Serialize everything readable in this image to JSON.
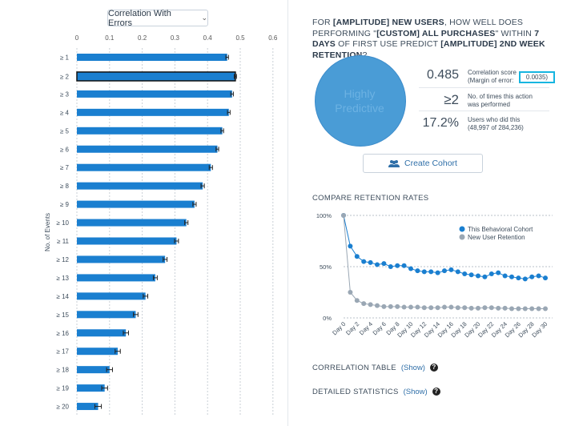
{
  "dropdown": {
    "label": "Correlation With Errors",
    "chevron": "chevron-down-icon"
  },
  "left_chart": {
    "ylabel": "No. of Events",
    "ticks": [
      "0",
      "0.1",
      "0.2",
      "0.3",
      "0.4",
      "0.5",
      "0.6"
    ],
    "categories": [
      "≥ 1",
      "≥ 2",
      "≥ 3",
      "≥ 4",
      "≥ 5",
      "≥ 6",
      "≥ 7",
      "≥ 8",
      "≥ 9",
      "≥ 10",
      "≥ 11",
      "≥ 12",
      "≥ 13",
      "≥ 14",
      "≥ 15",
      "≥ 16",
      "≥ 17",
      "≥ 18",
      "≥ 19",
      "≥ 20"
    ]
  },
  "question": {
    "p1": "FOR ",
    "b1": "[AMPLITUDE] NEW USERS",
    "p2": ", HOW WELL DOES PERFORMING \"",
    "b2": "[CUSTOM] ALL PURCHASES",
    "p3": "\" WITHIN ",
    "b3": "7 DAYS",
    "p4": " OF FIRST USE PREDICT ",
    "b4": "[AMPLITUDE] 2ND WEEK RETENTION",
    "p5": "?"
  },
  "circle": {
    "line1": "Highly",
    "line2": "Predictive"
  },
  "stats": {
    "corr_value": "0.485",
    "corr_label": "Correlation score",
    "moe_label": "(Margin of error:",
    "moe_value": "0.0035)",
    "times_value": "≥2",
    "times_label1": "No. of times this action",
    "times_label2": "was performed",
    "users_value": "17.2%",
    "users_label1": "Users who did this",
    "users_label2": "(48,997 of 284,236)"
  },
  "cohort_button": {
    "label": "Create Cohort",
    "icon": "users-icon"
  },
  "retention": {
    "title": "COMPARE RETENTION RATES",
    "y_ticks": [
      "100%",
      "50%",
      "0%"
    ],
    "x_labels": [
      "Day 0",
      "Day 2",
      "Day 4",
      "Day 6",
      "Day 8",
      "Day 10",
      "Day 12",
      "Day 14",
      "Day 16",
      "Day 18",
      "Day 20",
      "Day 22",
      "Day 24",
      "Day 26",
      "Day 28",
      "Day 30"
    ],
    "legend": [
      "This Behavioral Cohort",
      "New User Retention"
    ],
    "colors": {
      "cohort": "#1a7fd0",
      "baseline": "#9aa7b4"
    }
  },
  "correlation_table": {
    "label": "CORRELATION TABLE",
    "show": "(Show)"
  },
  "detailed_stats": {
    "label": "DETAILED STATISTICS",
    "show": "(Show)"
  },
  "chart_data": [
    {
      "type": "bar",
      "title": "",
      "xlabel": "",
      "ylabel": "No. of Events",
      "xlim": [
        0,
        0.65
      ],
      "categories": [
        "≥ 1",
        "≥ 2",
        "≥ 3",
        "≥ 4",
        "≥ 5",
        "≥ 6",
        "≥ 7",
        "≥ 8",
        "≥ 9",
        "≥ 10",
        "≥ 11",
        "≥ 12",
        "≥ 13",
        "≥ 14",
        "≥ 15",
        "≥ 16",
        "≥ 17",
        "≥ 18",
        "≥ 19",
        "≥ 20"
      ],
      "values": [
        0.46,
        0.485,
        0.475,
        0.465,
        0.445,
        0.43,
        0.41,
        0.385,
        0.36,
        0.335,
        0.305,
        0.27,
        0.24,
        0.21,
        0.18,
        0.15,
        0.125,
        0.1,
        0.085,
        0.065
      ],
      "errors": [
        0.004,
        0.0035,
        0.004,
        0.004,
        0.004,
        0.004,
        0.005,
        0.005,
        0.005,
        0.005,
        0.006,
        0.006,
        0.006,
        0.007,
        0.007,
        0.008,
        0.008,
        0.009,
        0.009,
        0.01
      ],
      "highlight_index": 1,
      "grid": true
    },
    {
      "type": "line",
      "title": "COMPARE RETENTION RATES",
      "ylim": [
        0,
        100
      ],
      "x": [
        "Day 0",
        "Day 1",
        "Day 2",
        "Day 3",
        "Day 4",
        "Day 5",
        "Day 6",
        "Day 7",
        "Day 8",
        "Day 9",
        "Day 10",
        "Day 11",
        "Day 12",
        "Day 13",
        "Day 14",
        "Day 15",
        "Day 16",
        "Day 17",
        "Day 18",
        "Day 19",
        "Day 20",
        "Day 21",
        "Day 22",
        "Day 23",
        "Day 24",
        "Day 25",
        "Day 26",
        "Day 27",
        "Day 28",
        "Day 29",
        "Day 30"
      ],
      "series": [
        {
          "name": "This Behavioral Cohort",
          "values": [
            100,
            70,
            60,
            55,
            54,
            52,
            53,
            50,
            51,
            51,
            48,
            46,
            45,
            45,
            44,
            46,
            47,
            45,
            43,
            42,
            41,
            40,
            43,
            44,
            41,
            40,
            39,
            38,
            40,
            41,
            39
          ]
        },
        {
          "name": "New User Retention",
          "values": [
            100,
            25,
            17,
            14,
            13,
            12,
            11,
            11,
            11,
            10.5,
            10.5,
            10.5,
            10,
            10,
            10,
            10.5,
            10.5,
            10,
            10,
            9.5,
            9.5,
            10,
            10,
            9.5,
            9.5,
            9,
            9,
            9,
            9,
            9,
            9
          ]
        }
      ],
      "legend": "top-right",
      "grid": true
    }
  ]
}
